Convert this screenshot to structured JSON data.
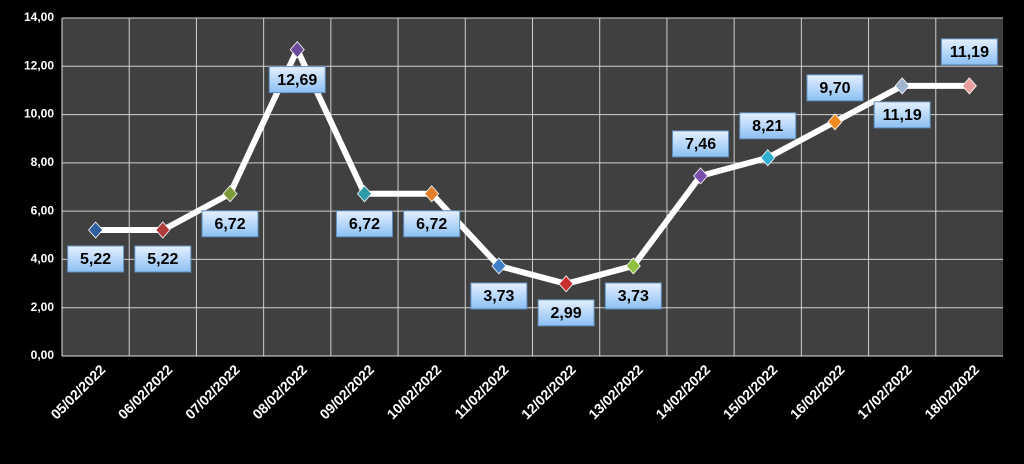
{
  "chart_data": {
    "type": "line",
    "categories": [
      "05/02/2022",
      "06/02/2022",
      "07/02/2022",
      "08/02/2022",
      "09/02/2022",
      "10/02/2022",
      "11/02/2022",
      "12/02/2022",
      "13/02/2022",
      "14/02/2022",
      "15/02/2022",
      "16/02/2022",
      "17/02/2022",
      "18/02/2022"
    ],
    "values": [
      5.22,
      5.22,
      6.72,
      12.69,
      6.72,
      6.72,
      3.73,
      2.99,
      3.73,
      7.46,
      8.21,
      9.7,
      11.19,
      11.19
    ],
    "value_labels": [
      "5,22",
      "5,22",
      "6,72",
      "12,69",
      "6,72",
      "6,72",
      "3,73",
      "2,99",
      "3,73",
      "7,46",
      "8,21",
      "9,70",
      "11,19",
      "11,19"
    ],
    "color": "#ffffff",
    "marker_colors": [
      "#2f5f9f",
      "#b03a3a",
      "#7d9a3a",
      "#6a4a9a",
      "#2f9aaa",
      "#e0802a",
      "#3f7fc8",
      "#c83030",
      "#8fc040",
      "#7a50a8",
      "#30b0d0",
      "#f08a20",
      "#a0b4d0",
      "#e8a0a0"
    ],
    "ylim": [
      0,
      14
    ],
    "yticks": [
      {
        "value": 0,
        "label": "0,00"
      },
      {
        "value": 2,
        "label": "2,00"
      },
      {
        "value": 4,
        "label": "4,00"
      },
      {
        "value": 6,
        "label": "6,00"
      },
      {
        "value": 8,
        "label": "8,00"
      },
      {
        "value": 10,
        "label": "10,00"
      },
      {
        "value": 12,
        "label": "12,00"
      },
      {
        "value": 14,
        "label": "14,00"
      }
    ],
    "grid": true
  }
}
